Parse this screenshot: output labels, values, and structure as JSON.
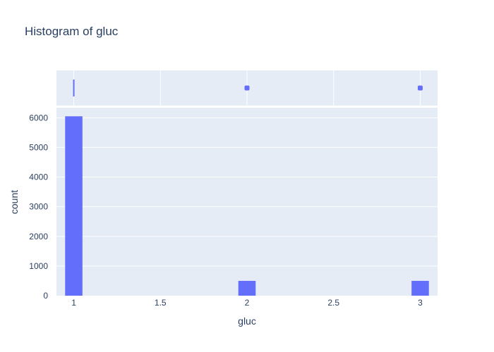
{
  "chart_data": {
    "type": "bar",
    "title": "Histogram of gluc",
    "xlabel": "gluc",
    "ylabel": "count",
    "x_ticks": [
      "1",
      "1.5",
      "2",
      "2.5",
      "3"
    ],
    "x_tick_values": [
      1,
      1.5,
      2,
      2.5,
      3
    ],
    "y_ticks": [
      "0",
      "1000",
      "2000",
      "3000",
      "4000",
      "5000",
      "6000"
    ],
    "y_tick_values": [
      0,
      1000,
      2000,
      3000,
      4000,
      5000,
      6000
    ],
    "xlim": [
      0.9,
      3.1
    ],
    "ylim": [
      0,
      6340
    ],
    "bin_width": 0.1,
    "series": [
      {
        "x": [
          1,
          2,
          3
        ],
        "values": [
          6050,
          500,
          500
        ]
      }
    ],
    "marginal_box": {
      "x": [
        1,
        2,
        3
      ]
    },
    "grid": true,
    "colors": {
      "bar": "#636efa",
      "plot_bg": "#e5ecf6",
      "grid": "#ffffff",
      "text": "#2a3f5f"
    }
  }
}
